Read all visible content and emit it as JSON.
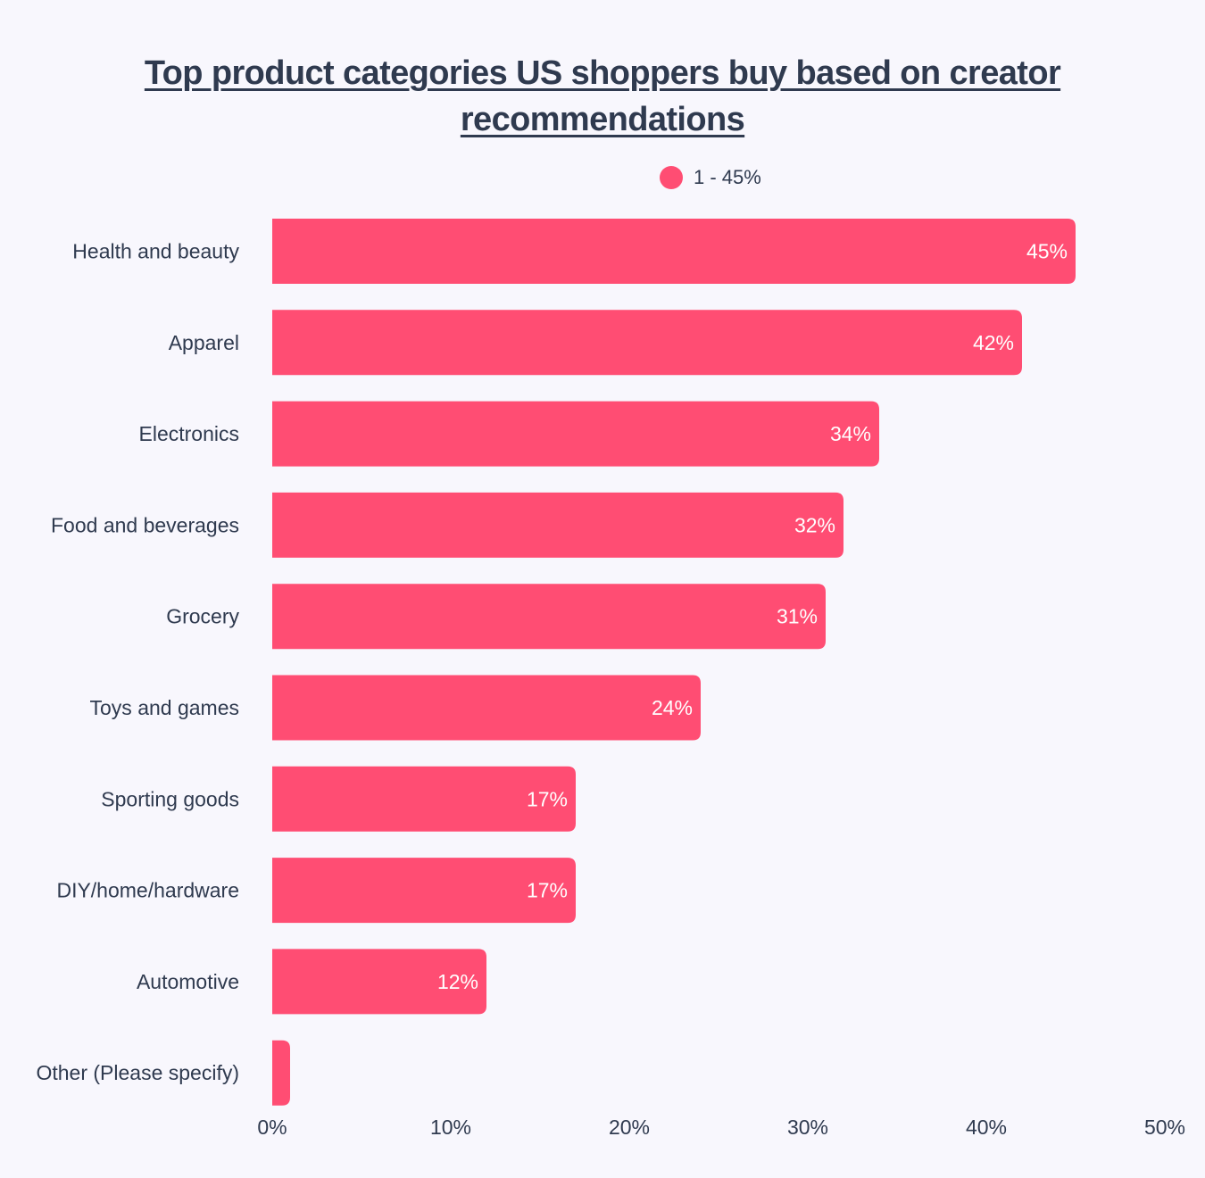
{
  "colors": {
    "bar": "#ff4d73",
    "background": "#f8f7fd",
    "text": "#2f3a4f",
    "value_label": "#ffffff"
  },
  "chart_data": {
    "type": "bar",
    "orientation": "horizontal",
    "title": "Top product categories US shoppers buy based on creator recommendations",
    "legend_position": "top-center",
    "grid": false,
    "xlim": [
      0,
      50
    ],
    "x_ticks": [
      "0%",
      "10%",
      "20%",
      "30%",
      "40%",
      "50%"
    ],
    "x_tick_values": [
      0,
      10,
      20,
      30,
      40,
      50
    ],
    "categories": [
      "Health and beauty",
      "Apparel",
      "Electronics",
      "Food and beverages",
      "Grocery",
      "Toys and games",
      "Sporting goods",
      "DIY/home/hardware",
      "Automotive",
      "Other (Please specify)"
    ],
    "series": [
      {
        "name": "1 - 45%",
        "values": [
          45,
          42,
          34,
          32,
          31,
          24,
          17,
          17,
          12,
          1
        ],
        "labels": [
          "45%",
          "42%",
          "34%",
          "32%",
          "31%",
          "24%",
          "17%",
          "17%",
          "12%",
          ""
        ]
      }
    ]
  }
}
